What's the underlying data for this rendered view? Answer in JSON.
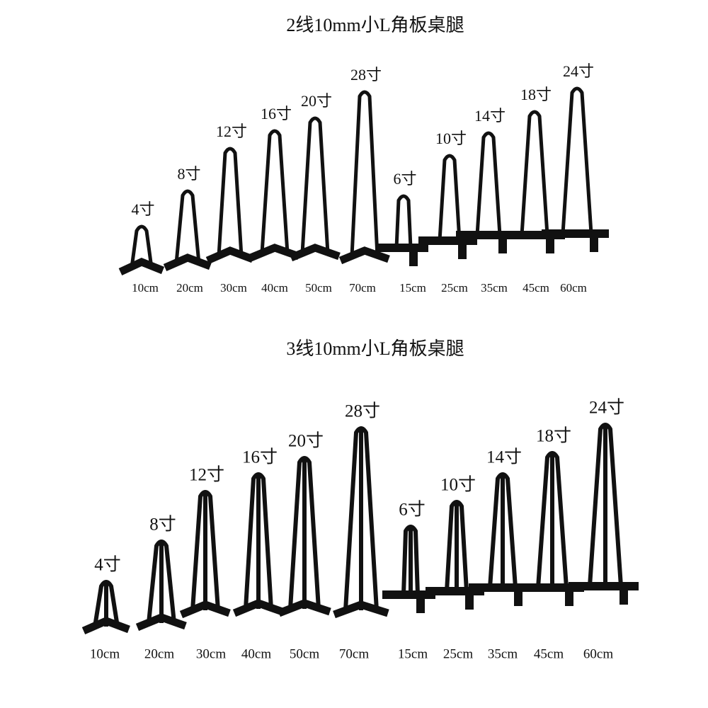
{
  "sections": [
    {
      "title": "2线10mm小L角板桌腿",
      "items": [
        {
          "size": "4寸",
          "length": "10cm"
        },
        {
          "size": "8寸",
          "length": "20cm"
        },
        {
          "size": "12寸",
          "length": "30cm"
        },
        {
          "size": "16寸",
          "length": "40cm"
        },
        {
          "size": "20寸",
          "length": "50cm"
        },
        {
          "size": "28寸",
          "length": "70cm"
        },
        {
          "size": "6寸",
          "length": "15cm"
        },
        {
          "size": "10寸",
          "length": "25cm"
        },
        {
          "size": "14寸",
          "length": "35cm"
        },
        {
          "size": "18寸",
          "length": "45cm"
        },
        {
          "size": "24寸",
          "length": "60cm"
        }
      ]
    },
    {
      "title": "3线10mm小L角板桌腿",
      "items": [
        {
          "size": "4寸",
          "length": "10cm"
        },
        {
          "size": "8寸",
          "length": "20cm"
        },
        {
          "size": "12寸",
          "length": "30cm"
        },
        {
          "size": "16寸",
          "length": "40cm"
        },
        {
          "size": "20寸",
          "length": "50cm"
        },
        {
          "size": "28寸",
          "length": "70cm"
        },
        {
          "size": "6寸",
          "length": "15cm"
        },
        {
          "size": "10寸",
          "length": "25cm"
        },
        {
          "size": "14寸",
          "length": "35cm"
        },
        {
          "size": "18寸",
          "length": "45cm"
        },
        {
          "size": "24寸",
          "length": "60cm"
        }
      ]
    }
  ]
}
